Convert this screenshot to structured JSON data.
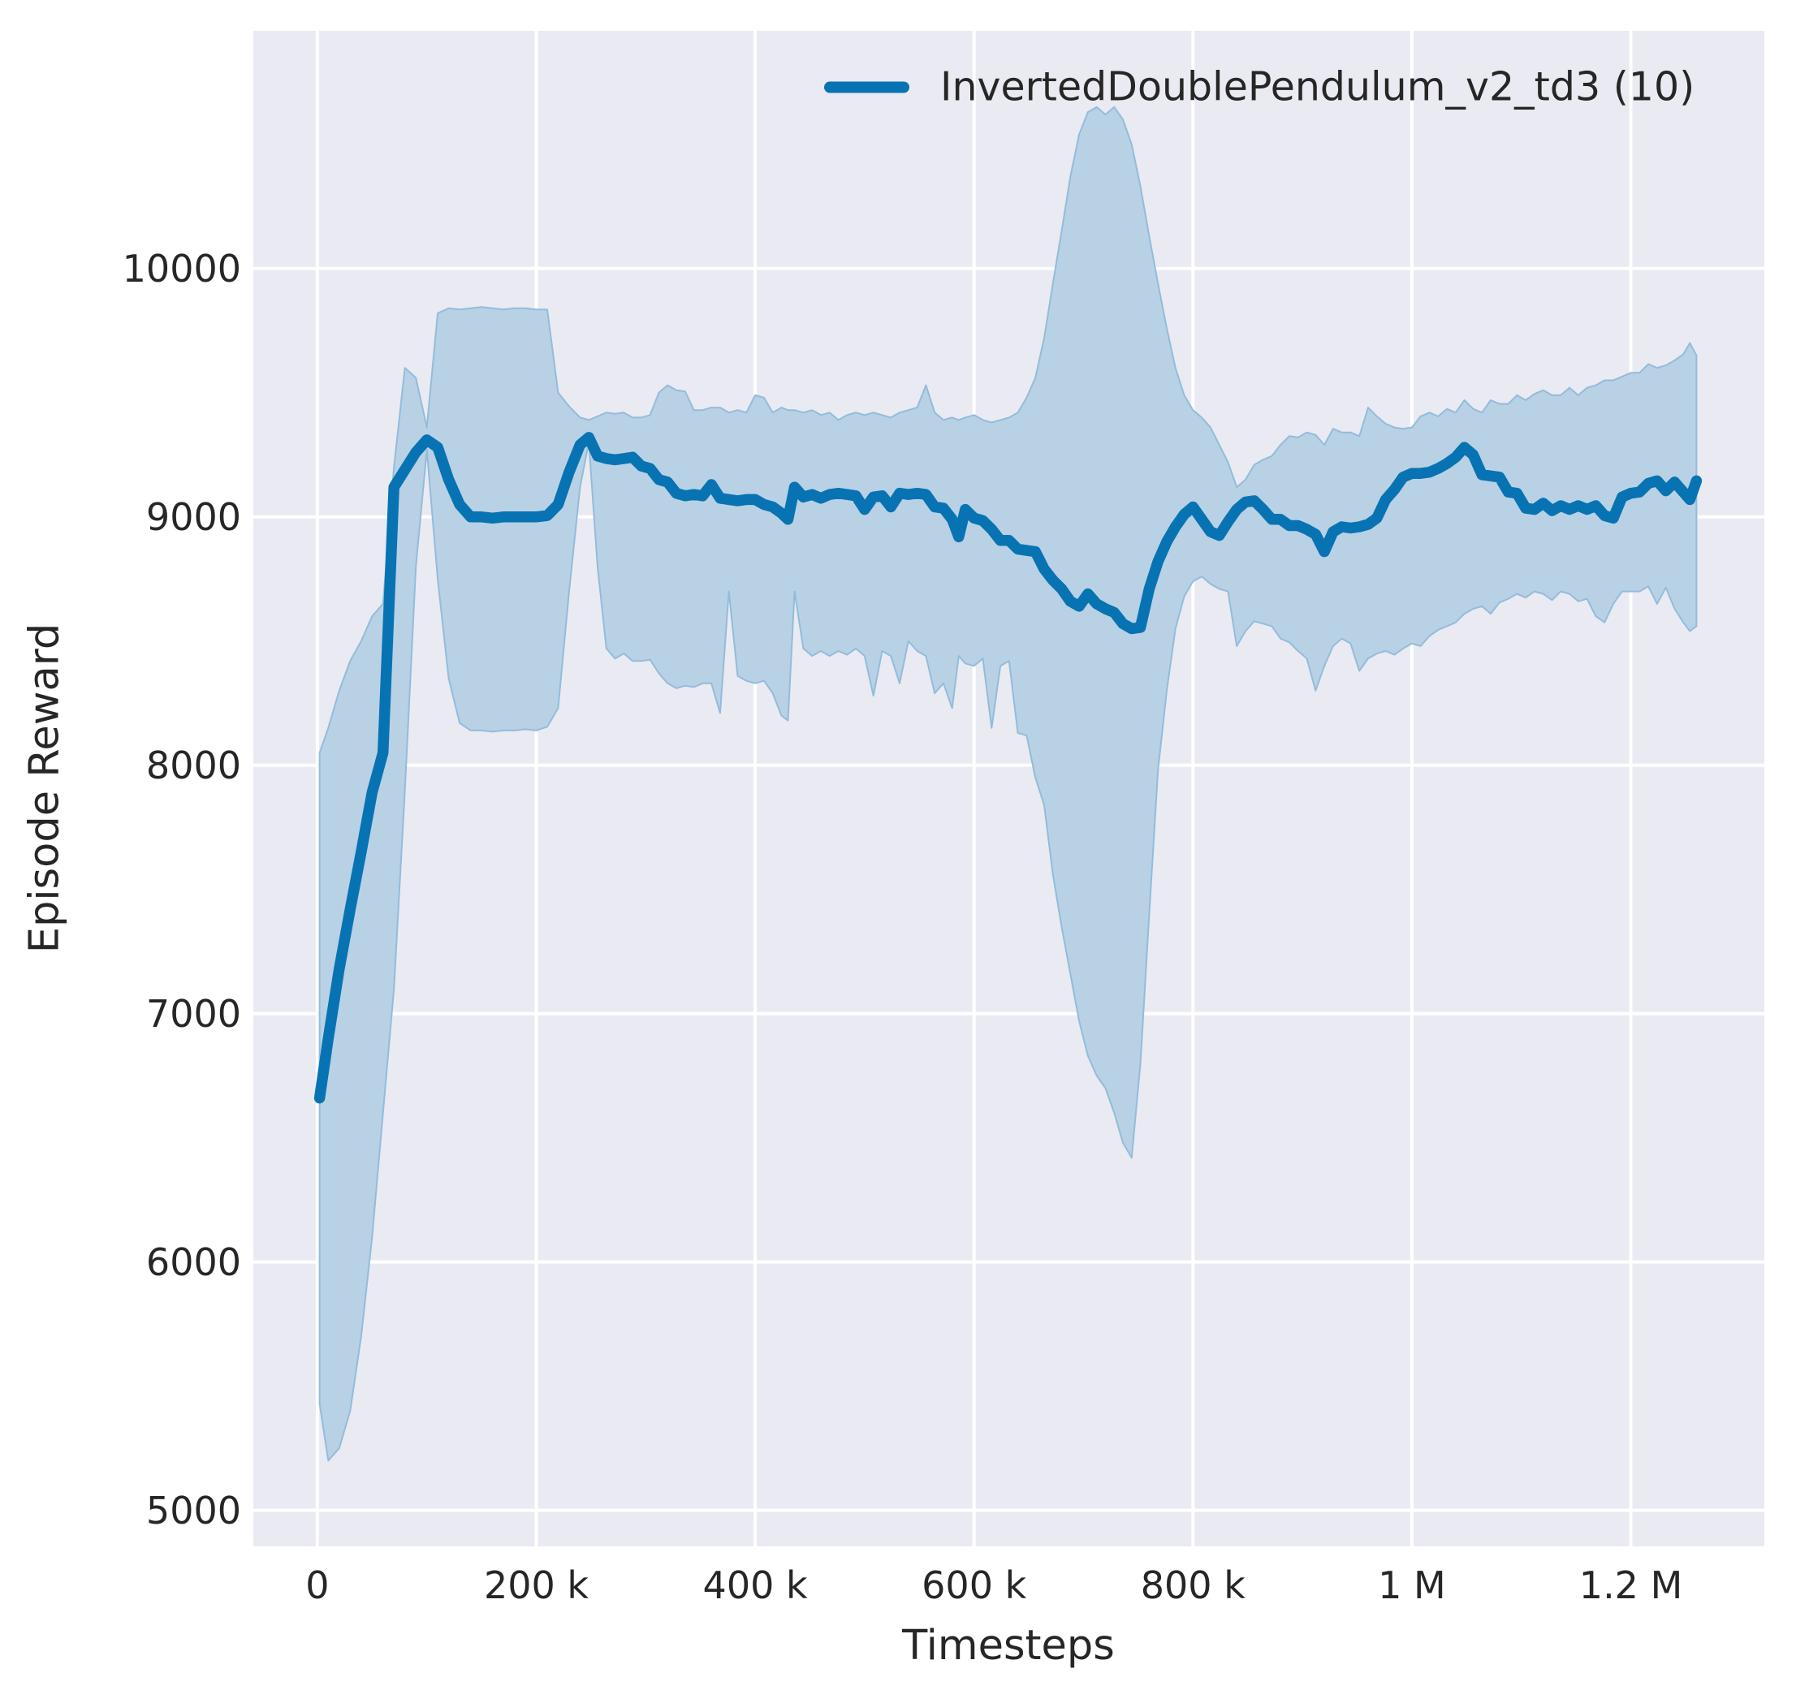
{
  "figure": {
    "legend": {
      "label": "InvertedDoublePendulum_v2_td3 (10)",
      "position": "upper center",
      "frame": false
    },
    "x_axis": {
      "label": "Timesteps"
    },
    "y_axis": {
      "label": "Episode Reward"
    }
  },
  "colors": {
    "figure_bg": "#ffffff",
    "plot_bg": "#eaeaf2",
    "grid": "#ffffff",
    "line": "#0873b2",
    "band_fill": "#b9d1e5",
    "band_edge": "#93bcdb",
    "text": "#262626"
  },
  "chart_data": {
    "type": "line",
    "title": "",
    "xlabel": "Timesteps",
    "ylabel": "Episode Reward",
    "grid": true,
    "legend_position": "upper center",
    "x_tick_labels": [
      "0",
      "200 k",
      "400 k",
      "600 k",
      "800 k",
      "1 M",
      "1.2 M"
    ],
    "x_tick_values": [
      0,
      200000,
      400000,
      600000,
      800000,
      1000000,
      1200000
    ],
    "y_tick_labels": [
      "5000",
      "6000",
      "7000",
      "8000",
      "9000",
      "10000"
    ],
    "y_tick_values": [
      5000,
      6000,
      7000,
      8000,
      9000,
      10000
    ],
    "xlim": [
      -58500,
      1322000
    ],
    "ylim": [
      4855,
      10957
    ],
    "series": [
      {
        "name": "InvertedDoublePendulum_v2_td3 (10)",
        "columns": [
          "timestep",
          "mean_episode_reward",
          "band_low",
          "band_high"
        ],
        "points": [
          [
            2000,
            6660,
            5430,
            8050
          ],
          [
            10000,
            6900,
            5200,
            8150
          ],
          [
            20000,
            7180,
            5250,
            8300
          ],
          [
            30000,
            7420,
            5400,
            8420
          ],
          [
            40000,
            7650,
            5700,
            8500
          ],
          [
            50000,
            7890,
            6100,
            8600
          ],
          [
            60000,
            8050,
            6600,
            8650
          ],
          [
            70000,
            9120,
            7100,
            9200
          ],
          [
            80000,
            9190,
            7900,
            9600
          ],
          [
            90000,
            9260,
            8800,
            9560
          ],
          [
            100000,
            9310,
            9270,
            9360
          ],
          [
            110000,
            9280,
            8750,
            9820
          ],
          [
            120000,
            9150,
            8350,
            9840
          ],
          [
            130000,
            9050,
            8170,
            9835
          ],
          [
            140000,
            9000,
            8140,
            9840
          ],
          [
            150000,
            9000,
            8140,
            9845
          ],
          [
            160000,
            8995,
            8135,
            9840
          ],
          [
            170000,
            9000,
            8140,
            9835
          ],
          [
            180000,
            9000,
            8140,
            9840
          ],
          [
            190000,
            9000,
            8145,
            9840
          ],
          [
            200000,
            9000,
            8140,
            9835
          ],
          [
            210000,
            9005,
            8155,
            9835
          ],
          [
            220000,
            9050,
            8230,
            9500
          ],
          [
            230000,
            9180,
            8700,
            9445
          ],
          [
            240000,
            9290,
            9120,
            9400
          ],
          [
            248000,
            9320,
            9300,
            9390
          ],
          [
            256000,
            9245,
            8800,
            9405
          ],
          [
            264000,
            9235,
            8470,
            9420
          ],
          [
            272000,
            9230,
            8430,
            9415
          ],
          [
            280000,
            9235,
            8450,
            9420
          ],
          [
            288000,
            9240,
            8420,
            9400
          ],
          [
            296000,
            9205,
            8420,
            9400
          ],
          [
            304000,
            9195,
            8425,
            9410
          ],
          [
            312000,
            9150,
            8370,
            9500
          ],
          [
            320000,
            9140,
            8330,
            9530
          ],
          [
            328000,
            9095,
            8310,
            9510
          ],
          [
            336000,
            9085,
            8320,
            9505
          ],
          [
            344000,
            9090,
            8315,
            9430
          ],
          [
            352000,
            9085,
            8330,
            9430
          ],
          [
            360000,
            9130,
            8330,
            9440
          ],
          [
            368000,
            9075,
            8210,
            9440
          ],
          [
            376000,
            9070,
            8700,
            9420
          ],
          [
            384000,
            9065,
            8360,
            9430
          ],
          [
            392000,
            9070,
            8340,
            9420
          ],
          [
            400000,
            9070,
            8330,
            9490
          ],
          [
            408000,
            9050,
            8340,
            9480
          ],
          [
            416000,
            9040,
            8290,
            9420
          ],
          [
            424000,
            9015,
            8200,
            9440
          ],
          [
            430000,
            8990,
            8180,
            9430
          ],
          [
            436000,
            9120,
            8700,
            9430
          ],
          [
            444000,
            9080,
            8470,
            9420
          ],
          [
            452000,
            9090,
            8440,
            9430
          ],
          [
            460000,
            9075,
            8460,
            9410
          ],
          [
            468000,
            9090,
            8440,
            9420
          ],
          [
            476000,
            9095,
            8460,
            9390
          ],
          [
            484000,
            9090,
            8445,
            9410
          ],
          [
            492000,
            9085,
            8470,
            9420
          ],
          [
            500000,
            9030,
            8440,
            9410
          ],
          [
            508000,
            9080,
            8280,
            9420
          ],
          [
            516000,
            9085,
            8460,
            9410
          ],
          [
            524000,
            9040,
            8440,
            9400
          ],
          [
            532000,
            9095,
            8330,
            9420
          ],
          [
            540000,
            9090,
            8500,
            9430
          ],
          [
            548000,
            9095,
            8460,
            9440
          ],
          [
            556000,
            9090,
            8440,
            9530
          ],
          [
            564000,
            9040,
            8290,
            9420
          ],
          [
            572000,
            9035,
            8330,
            9390
          ],
          [
            580000,
            8990,
            8230,
            9400
          ],
          [
            586000,
            8920,
            8440,
            9390
          ],
          [
            592000,
            9030,
            8410,
            9400
          ],
          [
            600000,
            8995,
            8400,
            9410
          ],
          [
            608000,
            8985,
            8430,
            9390
          ],
          [
            616000,
            8950,
            8150,
            9380
          ],
          [
            624000,
            8905,
            8400,
            9390
          ],
          [
            632000,
            8905,
            8420,
            9400
          ],
          [
            640000,
            8870,
            8130,
            9420
          ],
          [
            648000,
            8865,
            8120,
            9480
          ],
          [
            656000,
            8860,
            7950,
            9560
          ],
          [
            664000,
            8790,
            7840,
            9720
          ],
          [
            672000,
            8745,
            7560,
            9940
          ],
          [
            680000,
            8710,
            7350,
            10150
          ],
          [
            688000,
            8660,
            7160,
            10370
          ],
          [
            696000,
            8640,
            6970,
            10540
          ],
          [
            704000,
            8690,
            6830,
            10630
          ],
          [
            712000,
            8650,
            6750,
            10650
          ],
          [
            720000,
            8630,
            6700,
            10620
          ],
          [
            728000,
            8615,
            6600,
            10650
          ],
          [
            736000,
            8570,
            6480,
            10600
          ],
          [
            744000,
            8550,
            6420,
            10500
          ],
          [
            752000,
            8555,
            6800,
            10330
          ],
          [
            760000,
            8710,
            7400,
            10130
          ],
          [
            768000,
            8820,
            7980,
            9940
          ],
          [
            776000,
            8900,
            8300,
            9760
          ],
          [
            784000,
            8960,
            8550,
            9600
          ],
          [
            792000,
            9010,
            8680,
            9490
          ],
          [
            800000,
            9040,
            8740,
            9430
          ],
          [
            808000,
            8990,
            8760,
            9400
          ],
          [
            816000,
            8940,
            8730,
            9360
          ],
          [
            824000,
            8925,
            8710,
            9290
          ],
          [
            832000,
            8980,
            8700,
            9220
          ],
          [
            840000,
            9030,
            8480,
            9120
          ],
          [
            848000,
            9060,
            8540,
            9150
          ],
          [
            856000,
            9065,
            8580,
            9210
          ],
          [
            864000,
            9030,
            8570,
            9230
          ],
          [
            872000,
            8990,
            8560,
            9245
          ],
          [
            880000,
            8990,
            8510,
            9290
          ],
          [
            888000,
            8965,
            8495,
            9325
          ],
          [
            896000,
            8965,
            8460,
            9320
          ],
          [
            904000,
            8950,
            8430,
            9340
          ],
          [
            912000,
            8930,
            8300,
            9330
          ],
          [
            920000,
            8860,
            8400,
            9290
          ],
          [
            928000,
            8940,
            8480,
            9355
          ],
          [
            936000,
            8960,
            8510,
            9340
          ],
          [
            944000,
            8955,
            8490,
            9340
          ],
          [
            952000,
            8960,
            8380,
            9325
          ],
          [
            960000,
            8970,
            8430,
            9440
          ],
          [
            968000,
            8995,
            8450,
            9405
          ],
          [
            976000,
            9070,
            8460,
            9375
          ],
          [
            984000,
            9110,
            8445,
            9360
          ],
          [
            992000,
            9160,
            8470,
            9355
          ],
          [
            1000000,
            9175,
            8490,
            9360
          ],
          [
            1008000,
            9175,
            8480,
            9405
          ],
          [
            1016000,
            9180,
            8520,
            9420
          ],
          [
            1024000,
            9195,
            8545,
            9405
          ],
          [
            1032000,
            9215,
            8560,
            9435
          ],
          [
            1040000,
            9240,
            8575,
            9420
          ],
          [
            1048000,
            9280,
            8610,
            9470
          ],
          [
            1056000,
            9250,
            8630,
            9435
          ],
          [
            1064000,
            9170,
            8640,
            9420
          ],
          [
            1072000,
            9165,
            8610,
            9470
          ],
          [
            1080000,
            9160,
            8655,
            9455
          ],
          [
            1088000,
            9100,
            8670,
            9455
          ],
          [
            1096000,
            9095,
            8690,
            9490
          ],
          [
            1104000,
            9035,
            8675,
            9470
          ],
          [
            1112000,
            9030,
            8700,
            9495
          ],
          [
            1120000,
            9055,
            8690,
            9510
          ],
          [
            1128000,
            9025,
            8665,
            9490
          ],
          [
            1136000,
            9045,
            8700,
            9490
          ],
          [
            1144000,
            9030,
            8690,
            9520
          ],
          [
            1152000,
            9045,
            8660,
            9490
          ],
          [
            1160000,
            9030,
            8670,
            9520
          ],
          [
            1168000,
            9045,
            8600,
            9530
          ],
          [
            1176000,
            9005,
            8575,
            9550
          ],
          [
            1184000,
            8995,
            8650,
            9550
          ],
          [
            1192000,
            9080,
            8700,
            9565
          ],
          [
            1200000,
            9095,
            8700,
            9580
          ],
          [
            1208000,
            9100,
            8700,
            9580
          ],
          [
            1216000,
            9135,
            8720,
            9615
          ],
          [
            1224000,
            9145,
            8650,
            9600
          ],
          [
            1232000,
            9105,
            8715,
            9610
          ],
          [
            1240000,
            9140,
            8630,
            9630
          ],
          [
            1248000,
            9100,
            8575,
            9655
          ],
          [
            1254000,
            9070,
            8540,
            9700
          ],
          [
            1260000,
            9145,
            8560,
            9650
          ]
        ]
      }
    ]
  }
}
